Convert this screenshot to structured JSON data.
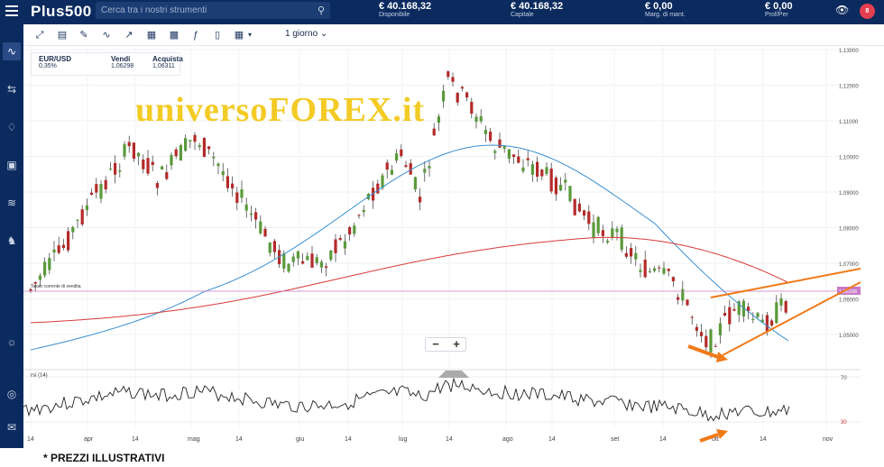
{
  "app": {
    "logo": "Plus500"
  },
  "search": {
    "placeholder": "Cerca tra i nostri strumenti"
  },
  "stats": [
    {
      "value": "€ 40.168,32",
      "label": "Disponibile"
    },
    {
      "value": "€ 40.168,32",
      "label": "Capitale"
    },
    {
      "value": "€ 0,00",
      "label": "Marg. di mant."
    },
    {
      "value": "€ 0,00",
      "label": "Prof/Per"
    }
  ],
  "badge": "8",
  "toolbar": {
    "period": "1 giorno"
  },
  "instrument": {
    "name": "EUR/USD",
    "change": "0,35%",
    "sell_label": "Vendi",
    "sell": "1,06298",
    "buy_label": "Acquista",
    "buy": "1,06311"
  },
  "watermark": "universoFOREX.it",
  "current_rate_label": "Tasso corrente di vendita",
  "current_rate_tag": "1,06298",
  "rsi_label": "rsi (14)",
  "rsi_levels": [
    "70",
    "30"
  ],
  "price_ticks": [
    "1,13000",
    "1,12000",
    "1,11000",
    "1,10000",
    "1,09000",
    "1,08000",
    "1,07000",
    "1,06000",
    "1,05000"
  ],
  "x_ticks": [
    "14",
    "apr",
    "14",
    "mag",
    "14",
    "giu",
    "14",
    "lug",
    "14",
    "ago",
    "14",
    "set",
    "14",
    "ott",
    "14",
    "nov"
  ],
  "footer": "* PREZZI ILLUSTRATIVI",
  "colors": {
    "up": "#5a9a3a",
    "down": "#b52a2a",
    "ma_fast": "#3a8fd0",
    "ma_slow": "#d93a3a",
    "annotation": "#f07a18",
    "rate_line": "#c77ac7"
  }
}
